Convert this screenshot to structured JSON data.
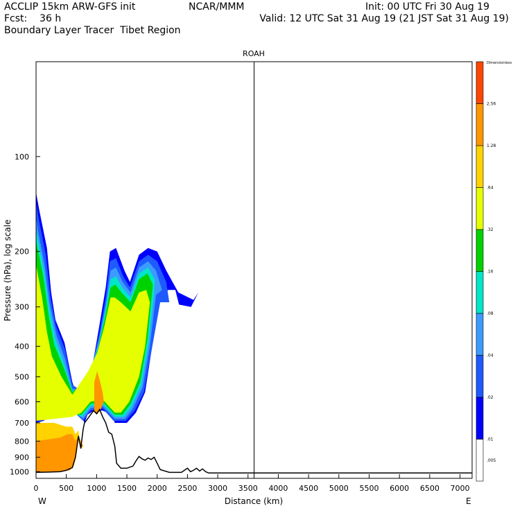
{
  "header": {
    "line1_left": "ACCLIP 15km ARW-GFS init",
    "line1_mid": "NCAR/MMM",
    "line1_right": "Init: 00 UTC Fri 30 Aug 19",
    "line2_left": "Fcst:    36 h",
    "line2_right": "Valid: 12 UTC Sat 31 Aug 19 (21 JST Sat 31 Aug 19)",
    "line3_left": "Boundary Layer Tracer  Tibet Region"
  },
  "chart_data": {
    "type": "heatmap",
    "title": "ROAH",
    "xlabel": "Distance (km)",
    "ylabel": "Pressure (hPa), log scale",
    "x_ticks": [
      0,
      500,
      1000,
      1500,
      2000,
      2500,
      3000,
      3500,
      4000,
      4500,
      5000,
      5500,
      6000,
      6500,
      7000
    ],
    "x_range": [
      0,
      7200
    ],
    "y_scale": "log",
    "y_range": [
      1050,
      50
    ],
    "y_ticks": [
      100,
      200,
      300,
      400,
      500,
      600,
      700,
      800,
      900,
      1000
    ],
    "x_end_labels": {
      "left": "W",
      "right": "E"
    },
    "vertical_marker_km": 3600,
    "colorbar": {
      "title": "Dimensionless",
      "labels": [
        ".005",
        ".01",
        ".02",
        ".04",
        ".08",
        ".16",
        ".32",
        ".64",
        "1.28",
        "2.56"
      ],
      "colors": [
        "#ffffff",
        "#0000ff",
        "#1e5aff",
        "#3c9bff",
        "#00e6c8",
        "#00d200",
        "#e6ff00",
        "#ffd200",
        "#ff9600",
        "#ff4600"
      ]
    },
    "terrain_profile": {
      "x_km": [
        0,
        200,
        400,
        500,
        600,
        650,
        700,
        740,
        760,
        780,
        800,
        850,
        900,
        950,
        1000,
        1050,
        1100,
        1150,
        1200,
        1250,
        1300,
        1330,
        1400,
        1500,
        1600,
        1650,
        1700,
        1750,
        1800,
        1850,
        1900,
        1950,
        2000,
        2050,
        2200,
        2400,
        2500,
        2550,
        2600,
        2650,
        2700,
        2750,
        2800,
        2850,
        2900,
        7200
      ],
      "p_hpa": [
        1005,
        1003,
        1000,
        990,
        970,
        900,
        770,
        845,
        780,
        730,
        700,
        680,
        660,
        640,
        655,
        635,
        670,
        700,
        750,
        760,
        830,
        940,
        975,
        975,
        960,
        925,
        895,
        910,
        920,
        905,
        915,
        900,
        940,
        985,
        1005,
        1005,
        975,
        1000,
        990,
        975,
        995,
        980,
        1000,
        1010,
        1010,
        1010
      ]
    },
    "tracer_regions": [
      {
        "level": ".01",
        "color": "#0000ff",
        "points": [
          [
            0,
            130
          ],
          [
            60,
            150
          ],
          [
            180,
            195
          ],
          [
            250,
            270
          ],
          [
            320,
            330
          ],
          [
            470,
            390
          ],
          [
            600,
            520
          ],
          [
            680,
            580
          ],
          [
            780,
            575
          ],
          [
            900,
            500
          ],
          [
            1050,
            340
          ],
          [
            1150,
            260
          ],
          [
            1220,
            200
          ],
          [
            1320,
            195
          ],
          [
            1460,
            230
          ],
          [
            1550,
            250
          ],
          [
            1700,
            205
          ],
          [
            1850,
            195
          ],
          [
            2000,
            200
          ],
          [
            2150,
            230
          ],
          [
            2350,
            270
          ],
          [
            2600,
            285
          ],
          [
            2680,
            270
          ],
          [
            2560,
            300
          ],
          [
            2360,
            295
          ],
          [
            2300,
            265
          ],
          [
            2180,
            265
          ],
          [
            2020,
            290
          ],
          [
            1900,
            420
          ],
          [
            1800,
            560
          ],
          [
            1650,
            650
          ],
          [
            1500,
            700
          ],
          [
            1300,
            700
          ],
          [
            1250,
            660
          ],
          [
            1100,
            640
          ],
          [
            950,
            640
          ],
          [
            850,
            660
          ],
          [
            800,
            700
          ],
          [
            700,
            640
          ],
          [
            500,
            620
          ],
          [
            300,
            660
          ],
          [
            120,
            690
          ],
          [
            0,
            700
          ]
        ]
      },
      {
        "level": ".02",
        "color": "#1e5aff",
        "points": [
          [
            0,
            140
          ],
          [
            50,
            160
          ],
          [
            160,
            205
          ],
          [
            240,
            280
          ],
          [
            330,
            345
          ],
          [
            480,
            410
          ],
          [
            600,
            530
          ],
          [
            780,
            560
          ],
          [
            880,
            510
          ],
          [
            1050,
            360
          ],
          [
            1150,
            280
          ],
          [
            1220,
            215
          ],
          [
            1320,
            210
          ],
          [
            1440,
            240
          ],
          [
            1550,
            260
          ],
          [
            1700,
            215
          ],
          [
            1850,
            205
          ],
          [
            2000,
            215
          ],
          [
            2150,
            250
          ],
          [
            2200,
            290
          ],
          [
            2050,
            290
          ],
          [
            1900,
            420
          ],
          [
            1780,
            560
          ],
          [
            1630,
            640
          ],
          [
            1480,
            690
          ],
          [
            1280,
            690
          ],
          [
            1100,
            630
          ],
          [
            900,
            640
          ],
          [
            780,
            690
          ],
          [
            600,
            640
          ],
          [
            400,
            630
          ],
          [
            200,
            670
          ],
          [
            0,
            690
          ]
        ]
      },
      {
        "level": ".04",
        "color": "#3c9bff",
        "points": [
          [
            0,
            155
          ],
          [
            40,
            175
          ],
          [
            140,
            220
          ],
          [
            230,
            295
          ],
          [
            340,
            370
          ],
          [
            480,
            440
          ],
          [
            600,
            545
          ],
          [
            760,
            550
          ],
          [
            860,
            510
          ],
          [
            1040,
            380
          ],
          [
            1150,
            295
          ],
          [
            1230,
            230
          ],
          [
            1320,
            225
          ],
          [
            1430,
            250
          ],
          [
            1560,
            270
          ],
          [
            1700,
            225
          ],
          [
            1850,
            215
          ],
          [
            1980,
            230
          ],
          [
            2080,
            265
          ],
          [
            1980,
            275
          ],
          [
            1880,
            400
          ],
          [
            1760,
            540
          ],
          [
            1600,
            630
          ],
          [
            1470,
            680
          ],
          [
            1300,
            680
          ],
          [
            1100,
            620
          ],
          [
            900,
            630
          ],
          [
            780,
            680
          ],
          [
            600,
            640
          ],
          [
            300,
            640
          ],
          [
            0,
            680
          ]
        ]
      },
      {
        "level": ".08",
        "color": "#00e6c8",
        "points": [
          [
            0,
            170
          ],
          [
            130,
            230
          ],
          [
            220,
            305
          ],
          [
            320,
            380
          ],
          [
            470,
            460
          ],
          [
            600,
            555
          ],
          [
            750,
            540
          ],
          [
            860,
            500
          ],
          [
            1030,
            400
          ],
          [
            1140,
            310
          ],
          [
            1230,
            245
          ],
          [
            1320,
            240
          ],
          [
            1420,
            260
          ],
          [
            1560,
            280
          ],
          [
            1700,
            235
          ],
          [
            1850,
            225
          ],
          [
            1960,
            245
          ],
          [
            1950,
            270
          ],
          [
            1860,
            390
          ],
          [
            1740,
            530
          ],
          [
            1580,
            620
          ],
          [
            1450,
            670
          ],
          [
            1300,
            670
          ],
          [
            1100,
            610
          ],
          [
            900,
            620
          ],
          [
            760,
            670
          ],
          [
            600,
            650
          ],
          [
            300,
            650
          ],
          [
            0,
            670
          ]
        ]
      },
      {
        "level": ".16",
        "color": "#00d200",
        "points": [
          [
            0,
            185
          ],
          [
            120,
            240
          ],
          [
            210,
            320
          ],
          [
            300,
            395
          ],
          [
            460,
            470
          ],
          [
            600,
            560
          ],
          [
            740,
            530
          ],
          [
            860,
            495
          ],
          [
            1020,
            410
          ],
          [
            1140,
            325
          ],
          [
            1230,
            260
          ],
          [
            1310,
            255
          ],
          [
            1410,
            270
          ],
          [
            1560,
            290
          ],
          [
            1700,
            245
          ],
          [
            1840,
            235
          ],
          [
            1930,
            255
          ],
          [
            1840,
            380
          ],
          [
            1720,
            520
          ],
          [
            1560,
            610
          ],
          [
            1430,
            660
          ],
          [
            1300,
            660
          ],
          [
            1100,
            600
          ],
          [
            900,
            610
          ],
          [
            750,
            660
          ],
          [
            600,
            660
          ],
          [
            300,
            660
          ],
          [
            0,
            660
          ]
        ]
      },
      {
        "level": ".32",
        "color": "#e6ff00",
        "points": [
          [
            0,
            220
          ],
          [
            100,
            280
          ],
          [
            180,
            360
          ],
          [
            260,
            430
          ],
          [
            420,
            500
          ],
          [
            600,
            570
          ],
          [
            740,
            520
          ],
          [
            860,
            480
          ],
          [
            1010,
            420
          ],
          [
            1130,
            345
          ],
          [
            1230,
            280
          ],
          [
            1300,
            280
          ],
          [
            1400,
            290
          ],
          [
            1560,
            310
          ],
          [
            1700,
            270
          ],
          [
            1820,
            265
          ],
          [
            1880,
            290
          ],
          [
            1800,
            400
          ],
          [
            1700,
            500
          ],
          [
            1540,
            600
          ],
          [
            1400,
            650
          ],
          [
            1300,
            650
          ],
          [
            1100,
            590
          ],
          [
            900,
            600
          ],
          [
            750,
            650
          ],
          [
            600,
            670
          ],
          [
            300,
            680
          ],
          [
            0,
            690
          ]
        ]
      },
      {
        "level": ".64",
        "color": "#ffd200",
        "points": [
          [
            0,
            700
          ],
          [
            300,
            700
          ],
          [
            500,
            720
          ],
          [
            600,
            720
          ],
          [
            650,
            760
          ],
          [
            700,
            740
          ],
          [
            720,
            800
          ],
          [
            0,
            830
          ]
        ]
      },
      {
        "level": "1.28",
        "color": "#ff9600",
        "points": [
          [
            0,
            800
          ],
          [
            200,
            790
          ],
          [
            400,
            780
          ],
          [
            520,
            760
          ],
          [
            600,
            760
          ],
          [
            650,
            800
          ],
          [
            700,
            770
          ],
          [
            780,
            830
          ],
          [
            740,
            845
          ],
          [
            700,
            790
          ],
          [
            660,
            900
          ],
          [
            620,
            960
          ],
          [
            560,
            990
          ],
          [
            400,
            1000
          ],
          [
            200,
            1003
          ],
          [
            0,
            1005
          ]
        ]
      },
      {
        "level": "1.28",
        "color": "#ff9600",
        "points": [
          [
            960,
            520
          ],
          [
            1010,
            480
          ],
          [
            1060,
            520
          ],
          [
            1100,
            560
          ],
          [
            1120,
            600
          ],
          [
            1060,
            640
          ],
          [
            1000,
            660
          ],
          [
            960,
            640
          ]
        ]
      }
    ]
  }
}
